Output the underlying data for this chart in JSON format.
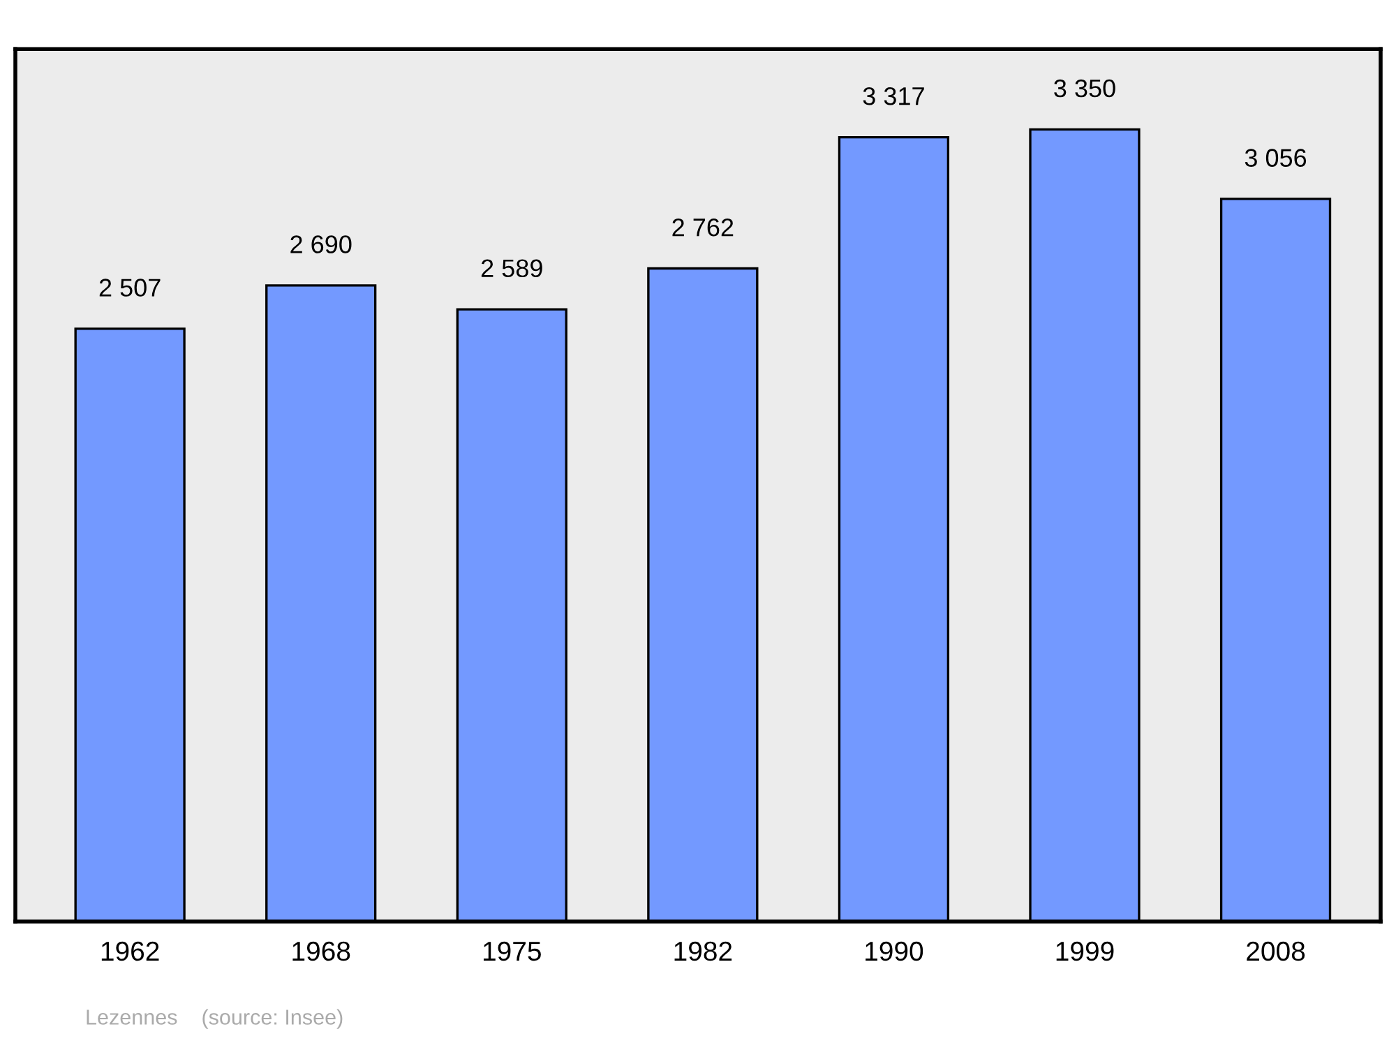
{
  "chart_data": {
    "type": "bar",
    "categories": [
      "1962",
      "1968",
      "1975",
      "1982",
      "1990",
      "1999",
      "2008"
    ],
    "values": [
      2507,
      2690,
      2589,
      2762,
      3317,
      3350,
      3056
    ],
    "value_labels": [
      "2 507",
      "2 690",
      "2 589",
      "2 762",
      "3 317",
      "3 350",
      "3 056"
    ],
    "color": "#7399ff",
    "ylim": [
      0,
      3690
    ],
    "tick_labels": "x",
    "grid": false,
    "legend": false,
    "annotations": [
      "Lezennes    (source: Insee)"
    ]
  }
}
